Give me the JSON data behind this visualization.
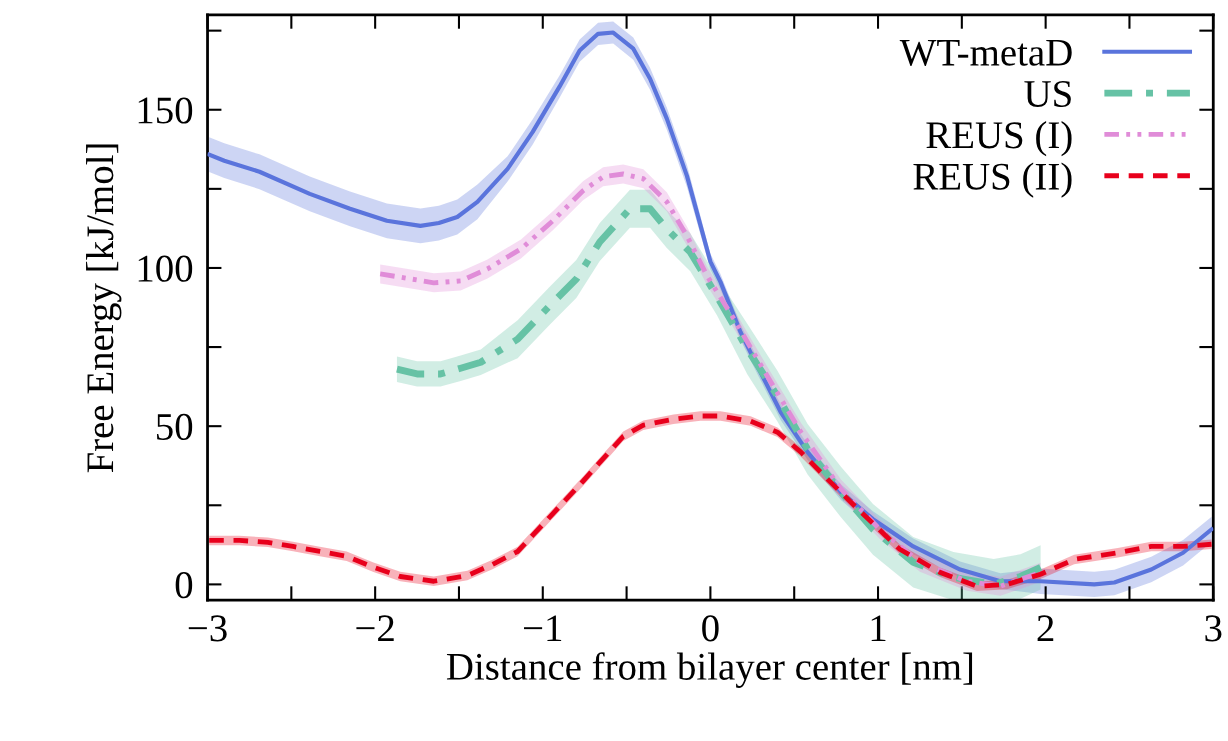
{
  "chart_data": {
    "type": "line",
    "xlabel": "Distance from bilayer center [nm]",
    "ylabel": "Free Energy [kJ/mol]",
    "xlim": [
      -3,
      3
    ],
    "ylim": [
      -5,
      180
    ],
    "xticks": [
      {
        "value": -3,
        "label": "−3"
      },
      {
        "value": -2.5,
        "label": null
      },
      {
        "value": -2,
        "label": "−2"
      },
      {
        "value": -1.5,
        "label": null
      },
      {
        "value": -1,
        "label": "−1"
      },
      {
        "value": -0.5,
        "label": null
      },
      0,
      {
        "value": 0.5,
        "label": null
      },
      1,
      {
        "value": 1.5,
        "label": null
      },
      2,
      {
        "value": 2.5,
        "label": null
      },
      3
    ],
    "yticks": [
      0,
      {
        "value": 25,
        "label": null
      },
      50,
      {
        "value": 75,
        "label": null
      },
      100,
      {
        "value": 125,
        "label": null
      },
      150,
      {
        "value": 175,
        "label": null
      }
    ],
    "grid": false,
    "legend": "top right",
    "marker": "none",
    "series": [
      {
        "name": "WT-metaD",
        "color": "#5a74dc",
        "line_style": "solid",
        "x": [
          -2.99,
          -2.9,
          -2.69,
          -2.39,
          -2.15,
          -1.93,
          -1.73,
          -1.62,
          -1.51,
          -1.39,
          -1.21,
          -1.06,
          -0.9,
          -0.78,
          -0.67,
          -0.58,
          -0.46,
          -0.36,
          -0.26,
          -0.14,
          0,
          0.06,
          0.18,
          0.28,
          0.42,
          0.58,
          0.78,
          0.97,
          1.21,
          1.49,
          1.73,
          1.97,
          2.29,
          2.41,
          2.63,
          2.82,
          2.99
        ],
        "values": [
          135.8,
          133.9,
          130.4,
          123.4,
          118.7,
          114.9,
          113.3,
          114.2,
          116.1,
          120.9,
          131.3,
          143.0,
          157.3,
          168.7,
          174.0,
          174.4,
          169.3,
          159.8,
          147.2,
          129.1,
          102.0,
          95.6,
          79.7,
          69.0,
          54.4,
          41.8,
          29.1,
          20.6,
          12.0,
          4.7,
          1.0,
          1.0,
          0.0,
          0.6,
          4.7,
          10.0,
          17.4
        ],
        "lower": [
          130.3,
          128.4,
          124.9,
          117.9,
          113.2,
          109.4,
          107.8,
          108.7,
          110.6,
          115.4,
          127.3,
          139.0,
          153.8,
          165.2,
          170.5,
          170.9,
          165.8,
          156.3,
          143.7,
          125.6,
          99.5,
          93.1,
          77.2,
          66.5,
          51.9,
          39.3,
          26.6,
          18.1,
          9.5,
          2.2,
          -1.5,
          -3,
          -4,
          -3.4,
          0.7,
          6,
          13.4
        ],
        "upper": [
          141.3,
          139.4,
          135.9,
          128.9,
          124.2,
          120.4,
          118.8,
          119.7,
          121.6,
          126.4,
          135.3,
          147.0,
          160.8,
          172.2,
          177.5,
          177.9,
          172.8,
          163.3,
          150.7,
          132.6,
          104.5,
          98.1,
          82.2,
          71.5,
          56.9,
          44.3,
          31.6,
          23.1,
          14.5,
          7.2,
          3.5,
          5.0,
          4.0,
          4.6,
          8.7,
          14.0,
          21.4
        ]
      },
      {
        "name": "US",
        "color": "#66c2a5",
        "line_style": "dashdot",
        "x": [
          -1.87,
          -1.75,
          -1.61,
          -1.49,
          -1.37,
          -1.15,
          -0.96,
          -0.8,
          -0.66,
          -0.48,
          -0.36,
          -0.26,
          -0.12,
          0.04,
          0.22,
          0.4,
          0.58,
          0.78,
          0.97,
          1.21,
          1.45,
          1.69,
          1.85,
          1.97
        ],
        "values": [
          68,
          66.5,
          66.5,
          68.3,
          70.2,
          77.5,
          88,
          96.5,
          108.2,
          118.7,
          118.7,
          112.3,
          105,
          91,
          74.4,
          59.5,
          42.7,
          29.1,
          17.4,
          7,
          2.2,
          0,
          2.5,
          5.4
        ],
        "lower": [
          64,
          62.5,
          62.5,
          64.3,
          66.2,
          71.5,
          82,
          90.5,
          102.2,
          112.7,
          112.7,
          106.3,
          99,
          85,
          66.4,
          51.5,
          34.7,
          21.1,
          9.4,
          -1,
          -5,
          -5,
          -4.5,
          -1.6
        ],
        "upper": [
          72,
          70.5,
          70.5,
          72.3,
          74.2,
          83.5,
          94,
          102.5,
          114.2,
          124.7,
          124.7,
          118.3,
          111,
          97,
          82.4,
          67.5,
          50.7,
          37.1,
          25.4,
          15,
          10.2,
          8,
          9.5,
          12.4
        ]
      },
      {
        "name": "REUS (I)",
        "color": "#e08cd8",
        "line_style": "dashdotdot",
        "x": [
          -1.97,
          -1.85,
          -1.65,
          -1.49,
          -1.33,
          -1.13,
          -0.94,
          -0.76,
          -0.64,
          -0.52,
          -0.4,
          -0.26,
          -0.14,
          -0.02,
          0.14,
          0.34,
          0.54,
          0.78,
          1.01,
          1.25,
          1.53,
          1.73,
          1.97
        ],
        "values": [
          98.1,
          97.1,
          95.3,
          95.9,
          99.7,
          106,
          114.9,
          124.4,
          128.8,
          129.7,
          128.2,
          120.9,
          110.1,
          97.5,
          83.9,
          65.8,
          48.1,
          30.1,
          17.4,
          7,
          1,
          -0.6,
          3.8
        ],
        "lower": [
          95.1,
          94.1,
          92.3,
          92.9,
          96.7,
          103,
          111.9,
          121.4,
          125.8,
          126.7,
          125.2,
          117.9,
          107.1,
          94.5,
          80.9,
          62.8,
          45.1,
          27.1,
          14.4,
          4,
          -2,
          -3.6,
          0.8
        ],
        "upper": [
          101.1,
          100.1,
          98.3,
          98.9,
          102.7,
          109,
          117.9,
          127.4,
          131.8,
          132.7,
          131.2,
          123.9,
          113.1,
          100.5,
          86.9,
          68.8,
          51.1,
          33.1,
          20.4,
          10,
          4,
          2.4,
          6.8
        ]
      },
      {
        "name": "REUS (II)",
        "color": "#e8001c",
        "line_style": "dashed",
        "x": [
          -2.99,
          -2.81,
          -2.64,
          -2.49,
          -2.33,
          -2.17,
          -2.01,
          -1.85,
          -1.65,
          -1.45,
          -1.3,
          -1.15,
          -0.96,
          -0.76,
          -0.52,
          -0.4,
          -0.22,
          -0.06,
          0.06,
          0.24,
          0.4,
          0.54,
          0.7,
          0.9,
          1.13,
          1.37,
          1.59,
          1.77,
          1.97,
          2.17,
          2.43,
          2.63,
          2.82,
          2.99
        ],
        "values": [
          13.9,
          13.9,
          13.3,
          12,
          10.4,
          8.9,
          5.4,
          2.5,
          1,
          2.8,
          6.3,
          10.4,
          21.2,
          32.6,
          46.8,
          50.3,
          52.2,
          53.2,
          53.2,
          51.6,
          48.1,
          41.8,
          33.2,
          22.8,
          11.1,
          3.8,
          -0.6,
          0,
          3.2,
          7.9,
          10,
          12,
          12,
          12.7
        ],
        "lower": [
          12.4,
          12.4,
          11.8,
          10.5,
          8.9,
          7.4,
          3.9,
          1,
          -0.5,
          1.3,
          4.8,
          8.9,
          19.7,
          31.1,
          45.3,
          48.8,
          50.7,
          51.7,
          51.7,
          50.1,
          46.6,
          40.3,
          31.7,
          21.3,
          9.6,
          2.3,
          -2.1,
          -1.5,
          1.7,
          6.4,
          8.5,
          10.5,
          10.5,
          11.2
        ],
        "upper": [
          15.4,
          15.4,
          14.8,
          13.5,
          11.9,
          10.4,
          6.9,
          4,
          2.5,
          4.3,
          7.8,
          11.9,
          22.7,
          34.1,
          48.3,
          51.8,
          53.7,
          54.7,
          54.7,
          53.1,
          49.6,
          43.3,
          34.7,
          24.3,
          12.6,
          5.3,
          0.9,
          1.5,
          4.7,
          9.4,
          11.5,
          13.5,
          13.5,
          14.2
        ]
      }
    ]
  }
}
